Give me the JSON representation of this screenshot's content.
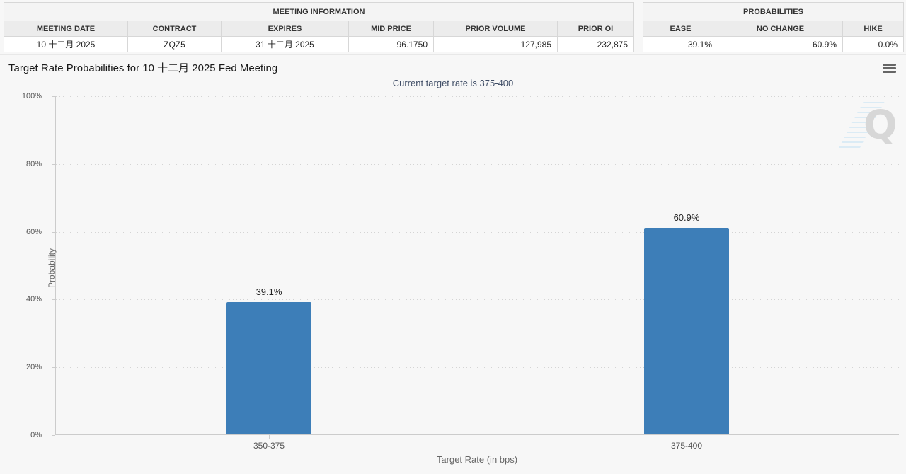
{
  "meeting_information": {
    "title": "MEETING INFORMATION",
    "columns": [
      "MEETING DATE",
      "CONTRACT",
      "EXPIRES",
      "MID PRICE",
      "PRIOR VOLUME",
      "PRIOR OI"
    ],
    "row": {
      "meeting_date": "10 十二月 2025",
      "contract": "ZQZ5",
      "expires": "31 十二月 2025",
      "mid_price": "96.1750",
      "prior_volume": "127,985",
      "prior_oi": "232,875"
    }
  },
  "probabilities": {
    "title": "PROBABILITIES",
    "columns": [
      "EASE",
      "NO CHANGE",
      "HIKE"
    ],
    "row": {
      "ease": "39.1%",
      "no_change": "60.9%",
      "hike": "0.0%"
    }
  },
  "chart": {
    "title": "Target Rate Probabilities for 10 十二月 2025 Fed Meeting",
    "subtitle": "Current target rate is 375-400",
    "watermark_letter": "Q"
  },
  "chart_data": {
    "type": "bar",
    "categories": [
      "350-375",
      "375-400"
    ],
    "values": [
      39.1,
      60.9
    ],
    "value_labels": [
      "39.1%",
      "60.9%"
    ],
    "title": "Target Rate Probabilities for 10 十二月 2025 Fed Meeting",
    "subtitle": "Current target rate is 375-400",
    "xlabel": "Target Rate (in bps)",
    "ylabel": "Probability",
    "yticks": [
      "0%",
      "20%",
      "40%",
      "60%",
      "80%",
      "100%"
    ],
    "ylim": [
      0,
      100
    ],
    "grid": "horizontal-dotted",
    "legend": "none",
    "bar_color": "#3d7eb8"
  },
  "colors": {
    "background": "#f7f7f7",
    "bar": "#3d7eb8",
    "subtitle_text": "#3f4d66",
    "axis_line": "#cccccc",
    "watermark_gray": "#d7d7d7",
    "watermark_blue": "#d8eaf5"
  }
}
